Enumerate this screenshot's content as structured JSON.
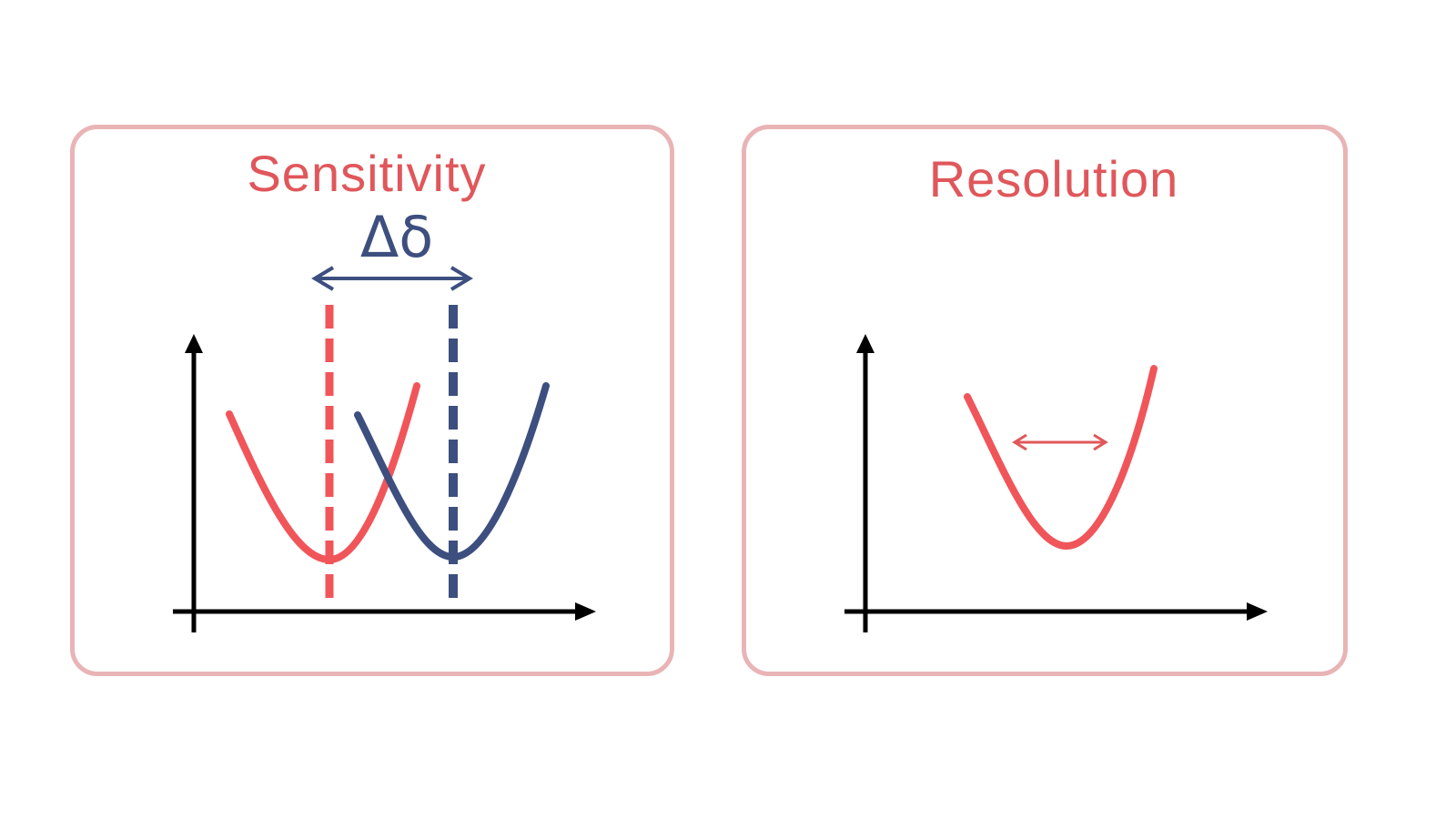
{
  "panels": {
    "sensitivity": {
      "title": "Sensitivity",
      "shift_label": "Δδ"
    },
    "resolution": {
      "title": "Resolution"
    }
  },
  "colors": {
    "border": "#e9b4b6",
    "title": "#e0575b",
    "red_curve": "#f0555a",
    "blue_curve": "#3d4f7f",
    "axis": "#000000"
  },
  "icons": {
    "shift_arrow": "double-headed-arrow-icon",
    "width_arrow": "double-headed-arrow-icon",
    "axes": "xy-axes-icon"
  }
}
